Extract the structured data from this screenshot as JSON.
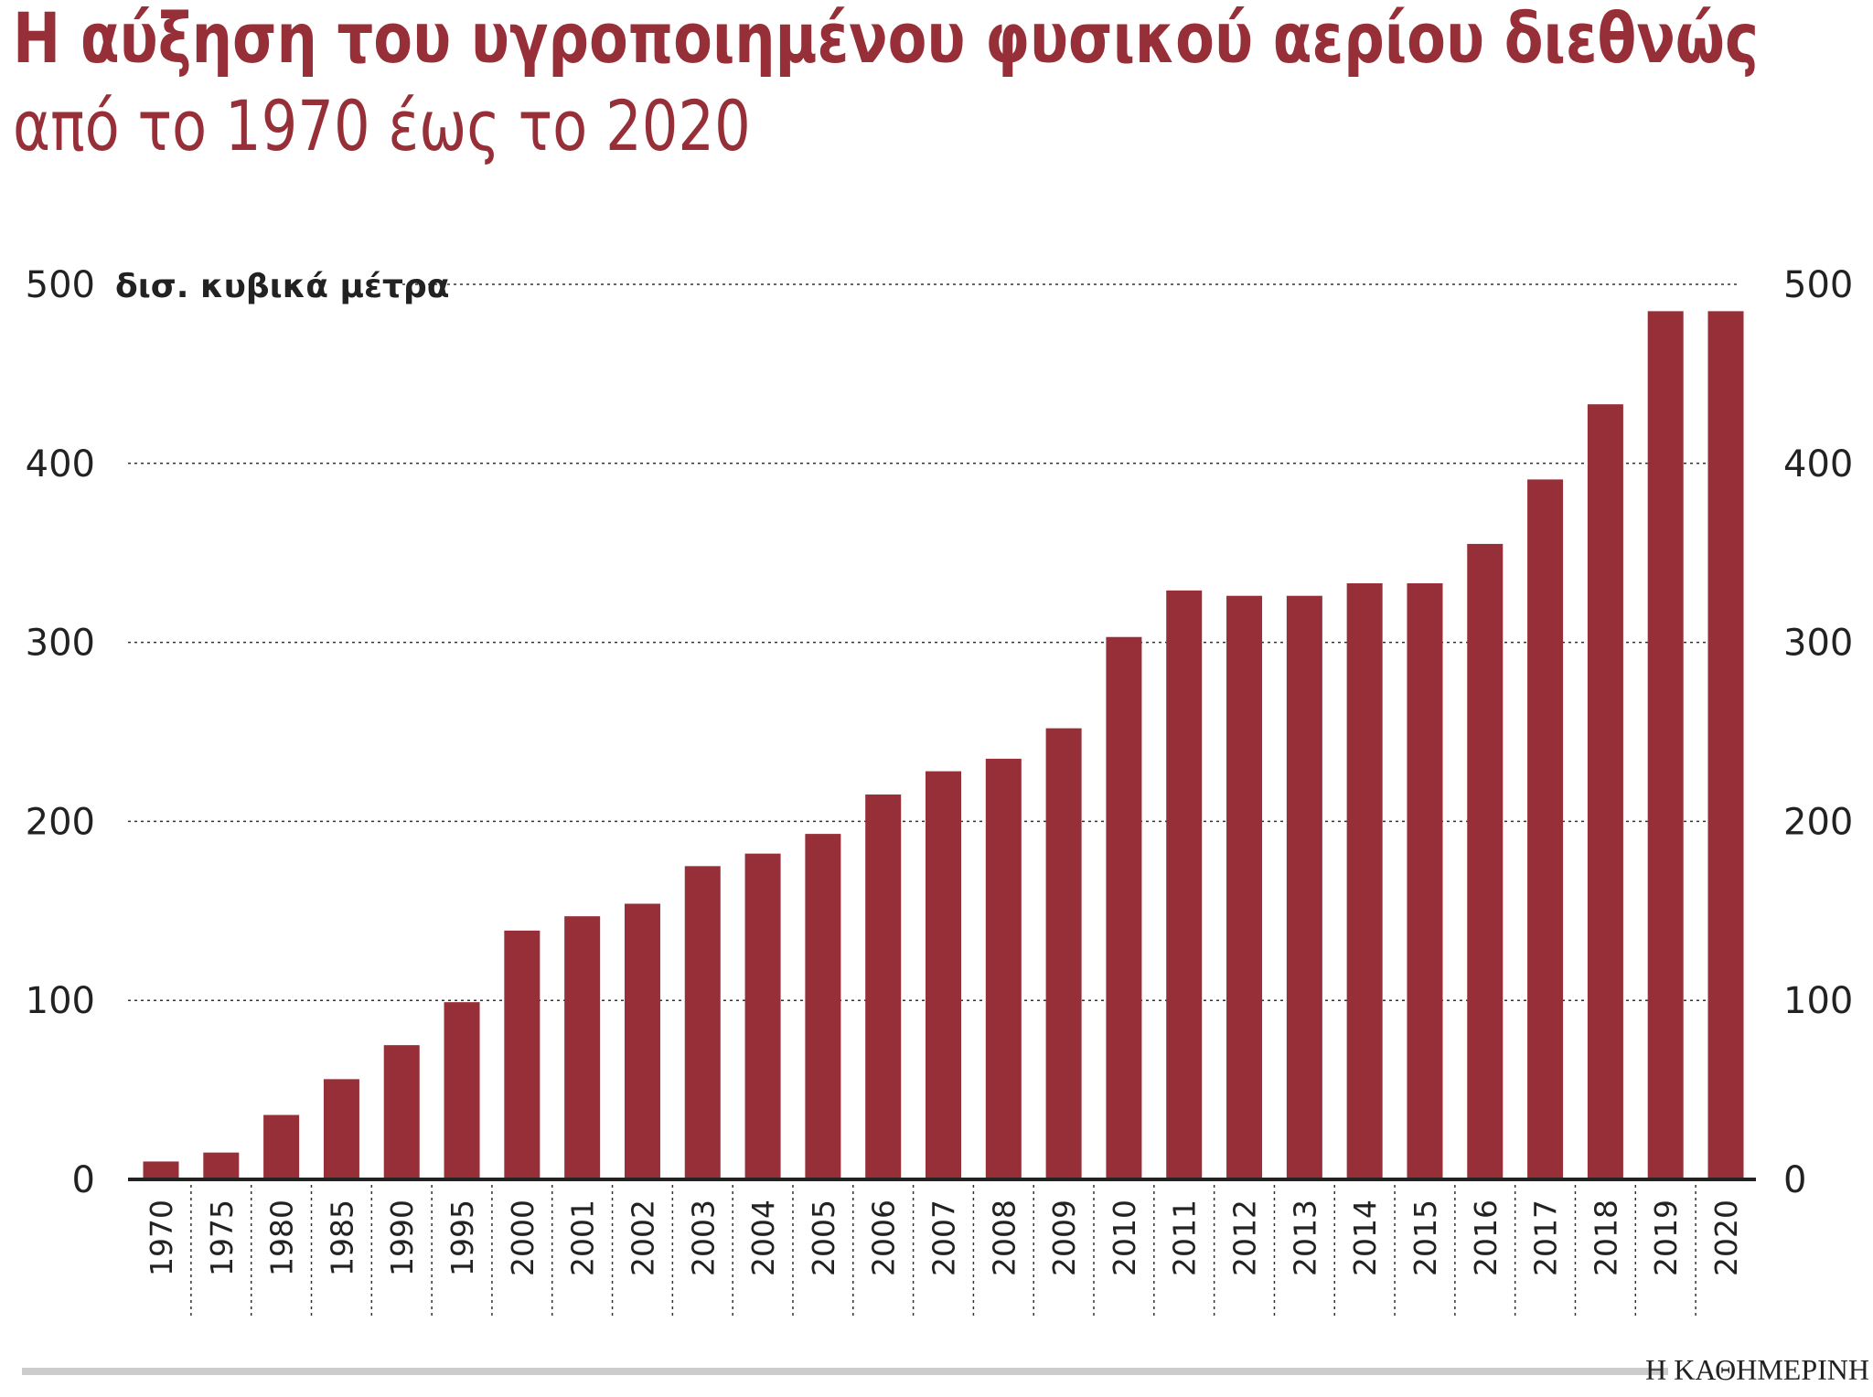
{
  "chart_data": {
    "type": "bar",
    "title": "Η αύξηση του υγροποιημένου φυσικού αερίου διεθνώς",
    "subtitle": "από το 1970 έως το 2020",
    "ylabel": "δισ. κυβικά μέτρα",
    "xlabel": "",
    "ylim": [
      0,
      500
    ],
    "yticks": [
      0,
      100,
      200,
      300,
      400,
      500
    ],
    "grid": true,
    "right_axis": true,
    "bar_color": "#962f37",
    "categories": [
      "1970",
      "1975",
      "1980",
      "1985",
      "1990",
      "1995",
      "2000",
      "2001",
      "2002",
      "2003",
      "2004",
      "2005",
      "2006",
      "2007",
      "2008",
      "2009",
      "2010",
      "2011",
      "2012",
      "2013",
      "2014",
      "2015",
      "2016",
      "2017",
      "2018",
      "2019",
      "2020"
    ],
    "values": [
      10,
      15,
      36,
      56,
      75,
      99,
      139,
      147,
      154,
      175,
      182,
      193,
      215,
      228,
      235,
      252,
      303,
      329,
      326,
      326,
      333,
      333,
      355,
      391,
      433,
      485,
      485
    ]
  },
  "source_logo": "Η ΚΑΘΗΜΕΡΙΝΗ"
}
